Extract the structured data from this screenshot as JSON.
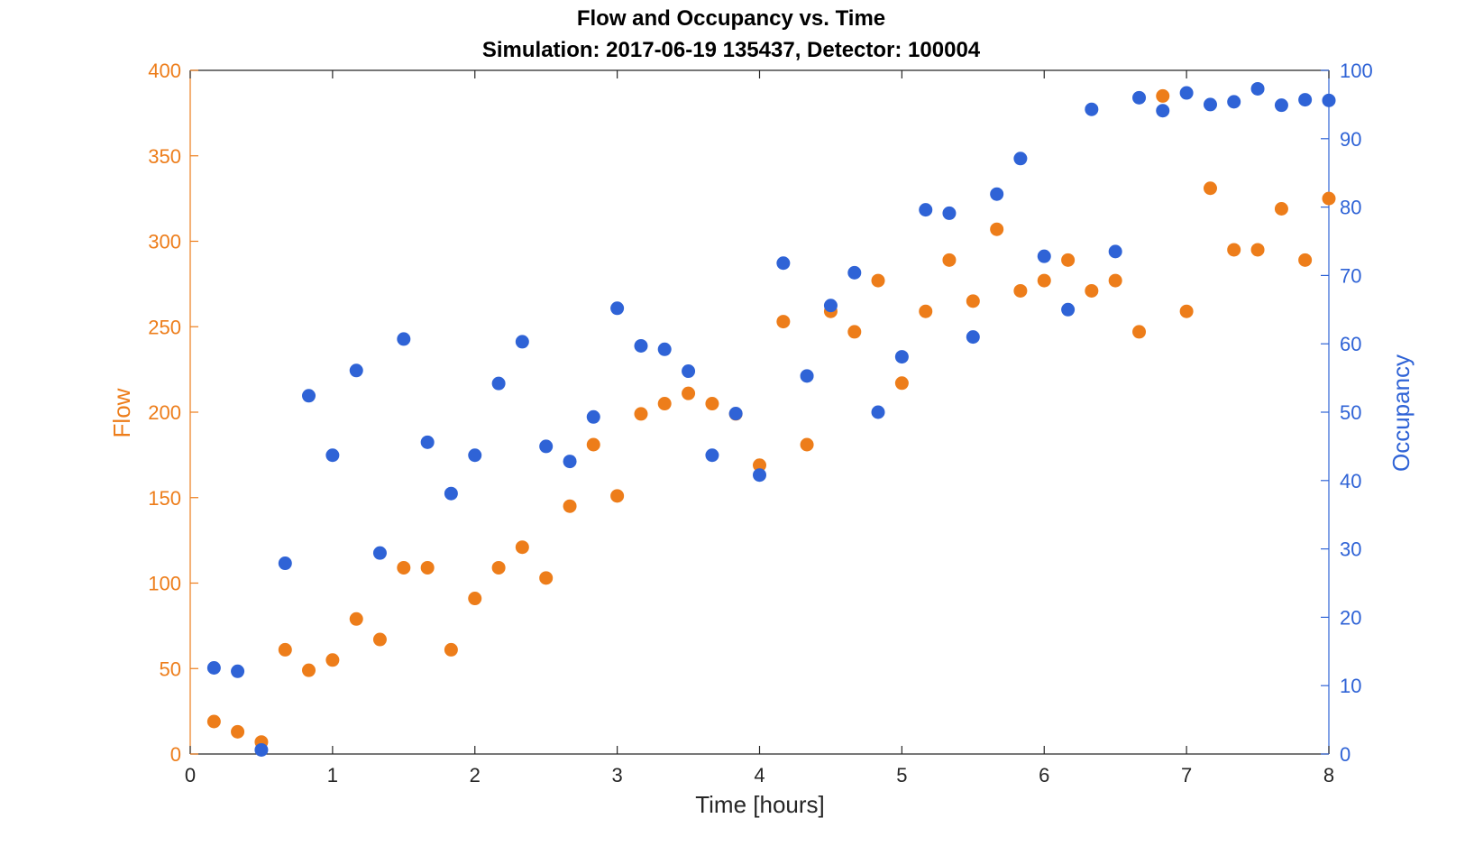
{
  "chart_data": {
    "type": "scatter",
    "title": "Flow and Occupancy vs. Time",
    "subtitle": "Simulation:  2017-06-19 135437,  Detector:  100004",
    "xlabel": "Time [hours]",
    "ylabel_left": "Flow",
    "ylabel_right": "Occupancy",
    "xlim": [
      0,
      8
    ],
    "ylim_left": [
      0,
      400
    ],
    "ylim_right": [
      0,
      100
    ],
    "x_ticks": [
      0,
      1,
      2,
      3,
      4,
      5,
      6,
      7,
      8
    ],
    "y_ticks_left": [
      0,
      50,
      100,
      150,
      200,
      250,
      300,
      350,
      400
    ],
    "y_ticks_right": [
      0,
      10,
      20,
      30,
      40,
      50,
      60,
      70,
      80,
      90,
      100
    ],
    "grid": false,
    "colors": {
      "flow": "#ED7D1A",
      "occupancy": "#2F63D6",
      "axis": "#262626"
    },
    "series": [
      {
        "axis": "left",
        "x": [
          0.167,
          0.333,
          0.5,
          0.667,
          0.833,
          1.0,
          1.167,
          1.333,
          1.5,
          1.667,
          1.833,
          2.0,
          2.167,
          2.333,
          2.5,
          2.667,
          2.833,
          3.0,
          3.167,
          3.333,
          3.5,
          3.667,
          3.833,
          4.0,
          4.167,
          4.333,
          4.5,
          4.667,
          4.833,
          5.0,
          5.167,
          5.333,
          5.5,
          5.667,
          5.833,
          6.0,
          6.167,
          6.333,
          6.5,
          6.667,
          6.833,
          7.0,
          7.167,
          7.333,
          7.5,
          7.667,
          7.833,
          8.0
        ],
        "values": [
          19,
          13,
          7,
          61,
          49,
          55,
          79,
          67,
          109,
          109,
          61,
          91,
          109,
          121,
          103,
          145,
          181,
          151,
          199,
          205,
          211,
          205,
          199,
          169,
          253,
          181,
          259,
          247,
          277,
          217,
          259,
          289,
          265,
          307,
          271,
          277,
          289,
          271,
          277,
          247,
          385,
          259,
          331,
          295,
          295,
          319,
          289,
          325
        ]
      },
      {
        "axis": "right",
        "x": [
          0.167,
          0.333,
          0.5,
          0.667,
          0.833,
          1.0,
          1.167,
          1.333,
          1.5,
          1.667,
          1.833,
          2.0,
          2.167,
          2.333,
          2.5,
          2.667,
          2.833,
          3.0,
          3.167,
          3.333,
          3.5,
          3.667,
          3.833,
          4.0,
          4.167,
          4.333,
          4.5,
          4.667,
          4.833,
          5.0,
          5.167,
          5.333,
          5.5,
          5.667,
          5.833,
          6.0,
          6.167,
          6.333,
          6.5,
          6.667,
          6.833,
          7.0,
          7.167,
          7.333,
          7.5,
          7.667,
          7.833,
          8.0
        ],
        "values": [
          12.6,
          12.1,
          0.6,
          27.9,
          52.4,
          43.7,
          56.1,
          29.4,
          60.7,
          45.6,
          38.1,
          43.7,
          54.2,
          60.3,
          45.0,
          42.8,
          49.3,
          65.2,
          59.7,
          59.2,
          56.0,
          43.7,
          49.8,
          40.8,
          71.8,
          55.3,
          65.6,
          70.4,
          50.0,
          58.1,
          79.6,
          79.1,
          61.0,
          81.9,
          87.1,
          72.8,
          65.0,
          94.3,
          73.5,
          96.0,
          94.1,
          96.7,
          95.0,
          95.4,
          97.3,
          94.9,
          95.7,
          95.6
        ]
      }
    ]
  }
}
